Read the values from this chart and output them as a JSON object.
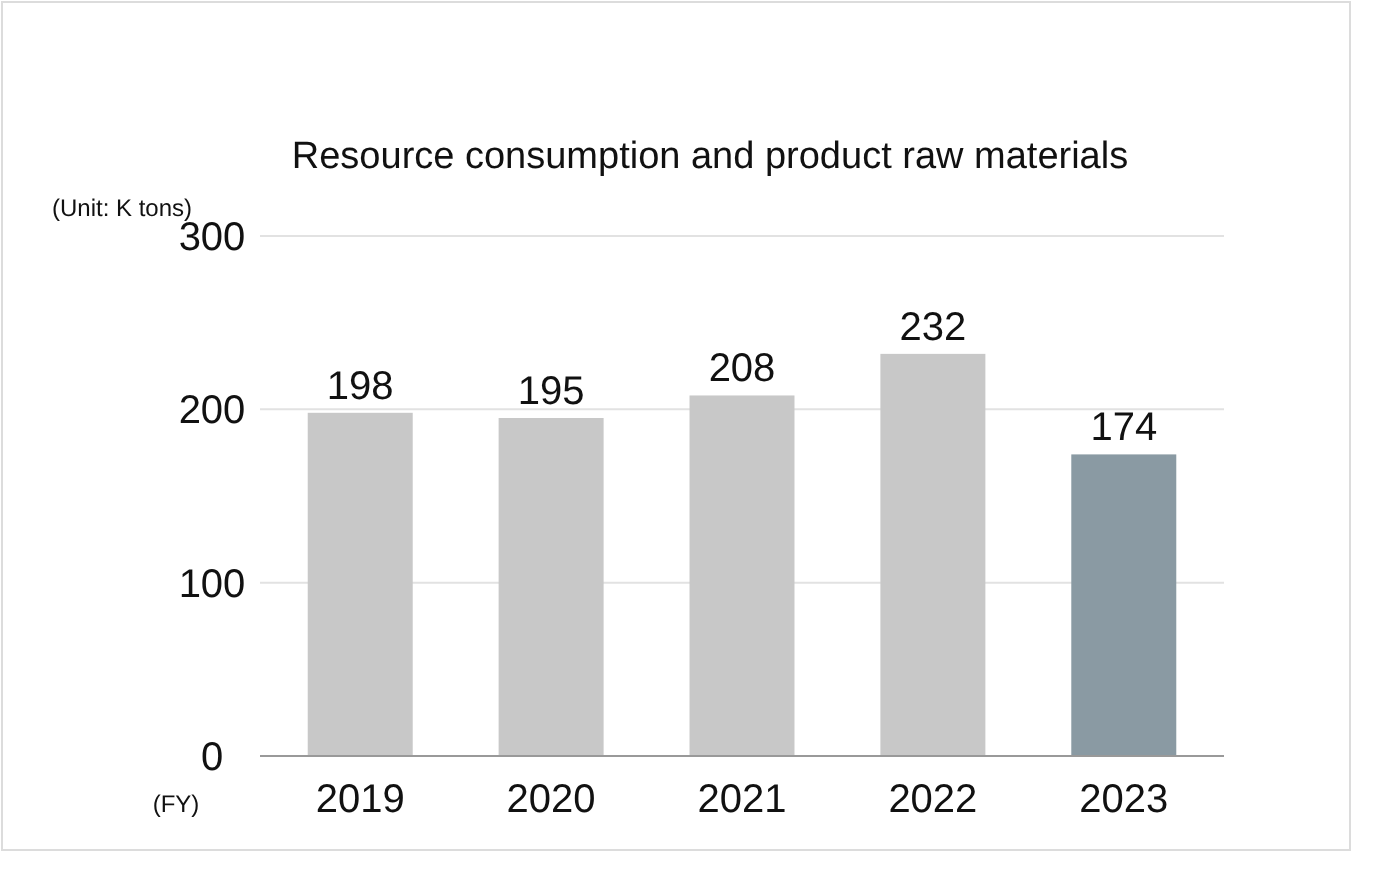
{
  "chart_data": {
    "type": "bar",
    "title": "Resource consumption and product raw materials",
    "categories": [
      "2019",
      "2020",
      "2021",
      "2022",
      "2023"
    ],
    "values": [
      198,
      195,
      208,
      232,
      174
    ],
    "colors": [
      "#c8c8c8",
      "#c8c8c8",
      "#c8c8c8",
      "#c8c8c8",
      "#8a9aa3"
    ],
    "ylim": [
      0,
      300
    ],
    "yticks": [
      0,
      100,
      200,
      300
    ],
    "grid": "y",
    "data_labels": true,
    "annotations": [
      "(Unit: K tons)",
      "(FY)"
    ]
  }
}
